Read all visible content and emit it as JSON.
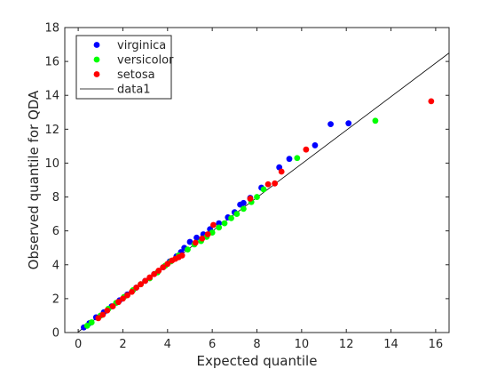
{
  "chart_data": {
    "type": "scatter",
    "title": "",
    "xlabel": "Expected quantile",
    "ylabel": "Observed quantile for QDA",
    "xlim": [
      -0.6,
      16.6
    ],
    "ylim": [
      0,
      18
    ],
    "xticks": [
      "0",
      "2",
      "4",
      "6",
      "8",
      "10",
      "12",
      "14",
      "16"
    ],
    "yticks": [
      "0",
      "2",
      "4",
      "6",
      "8",
      "10",
      "12",
      "14",
      "16",
      "18"
    ],
    "grid": false,
    "legend_position": "top-left",
    "series": [
      {
        "name": "virginica",
        "color": "#0000ff",
        "x": [
          0.25,
          0.5,
          0.8,
          1.15,
          1.5,
          1.85,
          2.2,
          2.6,
          3.0,
          3.4,
          3.8,
          4.1,
          4.4,
          4.6,
          4.75,
          5.0,
          5.3,
          5.6,
          5.9,
          6.3,
          6.7,
          7.0,
          7.25,
          7.4,
          7.7,
          8.2,
          9.0,
          9.45,
          10.6,
          11.3,
          12.1
        ],
        "y": [
          0.3,
          0.55,
          0.9,
          1.2,
          1.55,
          1.9,
          2.25,
          2.65,
          3.05,
          3.45,
          3.85,
          4.2,
          4.5,
          4.75,
          5.0,
          5.35,
          5.6,
          5.8,
          6.1,
          6.45,
          6.8,
          7.1,
          7.55,
          7.65,
          7.95,
          8.55,
          9.75,
          10.25,
          11.05,
          12.3,
          12.35
        ]
      },
      {
        "name": "versicolor",
        "color": "#00ff00",
        "x": [
          0.4,
          0.6,
          1.0,
          1.35,
          1.7,
          2.05,
          2.45,
          2.8,
          3.2,
          3.55,
          3.9,
          4.15,
          4.5,
          4.9,
          5.2,
          5.5,
          5.75,
          6.0,
          6.3,
          6.55,
          6.85,
          7.1,
          7.4,
          7.75,
          8.0,
          8.3,
          9.8,
          13.3
        ],
        "y": [
          0.4,
          0.6,
          1.0,
          1.4,
          1.75,
          2.1,
          2.5,
          2.85,
          3.2,
          3.55,
          3.95,
          4.2,
          4.55,
          4.9,
          5.2,
          5.4,
          5.65,
          5.9,
          6.2,
          6.45,
          6.75,
          7.0,
          7.3,
          7.7,
          8.0,
          8.45,
          10.3,
          12.5
        ]
      },
      {
        "name": "setosa",
        "color": "#ff0000",
        "x": [
          0.9,
          1.1,
          1.3,
          1.55,
          1.8,
          2.0,
          2.2,
          2.4,
          2.6,
          2.8,
          3.0,
          3.2,
          3.4,
          3.6,
          3.8,
          4.0,
          4.2,
          4.35,
          4.5,
          4.65,
          5.25,
          5.55,
          5.8,
          6.05,
          7.7,
          8.5,
          8.8,
          9.1,
          10.2,
          15.8
        ],
        "y": [
          0.85,
          1.05,
          1.3,
          1.55,
          1.8,
          2.0,
          2.2,
          2.4,
          2.65,
          2.85,
          3.05,
          3.25,
          3.45,
          3.65,
          3.85,
          4.05,
          4.25,
          4.35,
          4.45,
          4.55,
          5.3,
          5.55,
          5.8,
          6.35,
          7.9,
          8.75,
          8.8,
          9.5,
          10.8,
          13.65
        ]
      }
    ],
    "reference_line": {
      "name": "data1",
      "color": "#000000",
      "x": [
        -0.6,
        16.6
      ],
      "y": [
        -0.56,
        16.5
      ]
    }
  }
}
